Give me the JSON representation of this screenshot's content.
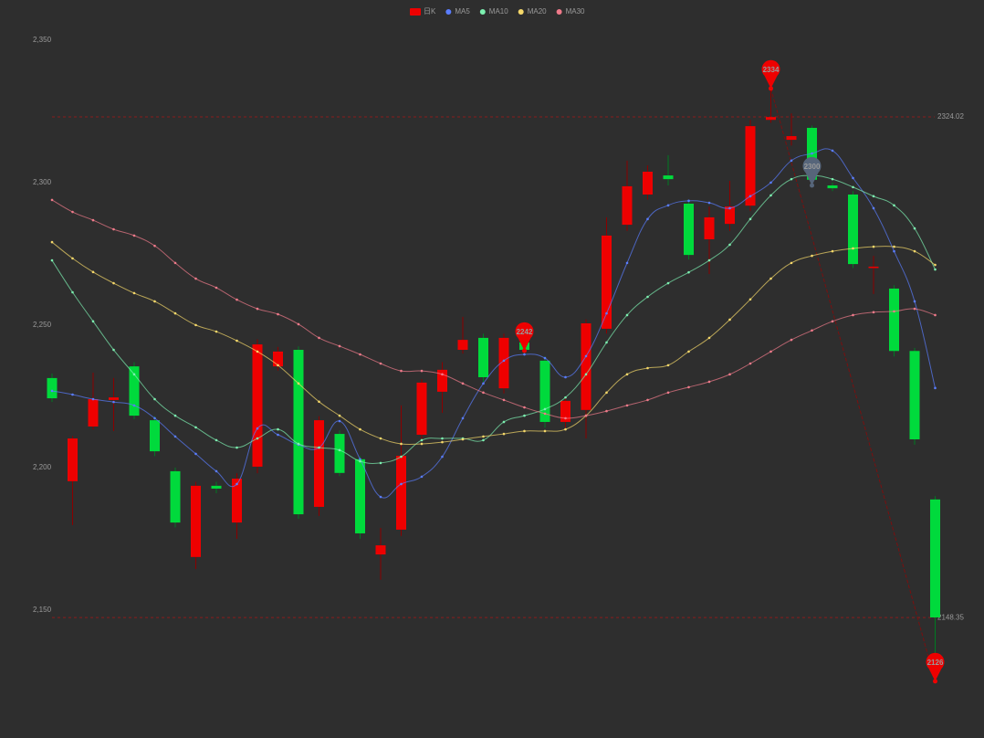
{
  "chart_data": {
    "type": "candlestick",
    "ylim": [
      2120,
      2355
    ],
    "yticks": [
      {
        "value": 2150,
        "label": "2,150"
      },
      {
        "value": 2200,
        "label": "2,200"
      },
      {
        "value": 2250,
        "label": "2,250"
      },
      {
        "value": 2300,
        "label": "2,300"
      },
      {
        "value": 2350,
        "label": "2,350"
      }
    ],
    "series": [
      {
        "name": "日K",
        "color": "#ee0000",
        "color_down": "#00da3c",
        "open": [
          2232.4,
          2196.2,
          2215.4,
          2224.7,
          2236.5,
          2217.6,
          2199.7,
          2169.6,
          2194.6,
          2181.7,
          2201.3,
          2236.5,
          2242.3,
          2187.2,
          2212.8,
          2203.9,
          2170.5,
          2179.2,
          2212.5,
          2227.6,
          2242.3,
          2246.5,
          2228.8,
          2244.9,
          2238.5,
          2217.0,
          2221.2,
          2249.7,
          2286.2,
          2296.8,
          2303.5,
          2293.6,
          2281.1,
          2286.5,
          2292.9,
          2323.0,
          2316.0,
          2320.2,
          2300.0,
          2296.8,
          2271.0,
          2263.8,
          2241.9,
          2189.8
        ],
        "close": [
          2225.3,
          2211.2,
          2225.0,
          2225.6,
          2219.2,
          2206.7,
          2181.7,
          2194.6,
          2193.6,
          2197.1,
          2244.2,
          2241.7,
          2184.6,
          2217.6,
          2199.1,
          2177.9,
          2173.7,
          2205.1,
          2230.8,
          2235.3,
          2245.8,
          2232.7,
          2246.5,
          2242.3,
          2217.0,
          2224.4,
          2251.6,
          2282.4,
          2299.7,
          2304.8,
          2302.2,
          2275.6,
          2288.8,
          2292.6,
          2320.8,
          2324.0,
          2317.3,
          2302.0,
          2299.0,
          2272.4,
          2271.5,
          2241.9,
          2210.9,
          2148.4
        ],
        "low": [
          2224.0,
          2180.8,
          2214.4,
          2213.8,
          2218.0,
          2205.0,
          2180.0,
          2165.4,
          2192.0,
          2176.0,
          2199.0,
          2235.0,
          2183.0,
          2184.0,
          2198.0,
          2176.0,
          2161.6,
          2177.0,
          2211.0,
          2220.2,
          2241.0,
          2231.0,
          2227.0,
          2241.0,
          2215.0,
          2215.0,
          2211.2,
          2248.0,
          2284.0,
          2295.0,
          2300.0,
          2274.0,
          2268.9,
          2284.0,
          2291.0,
          2322.0,
          2314.0,
          2300.0,
          2298.0,
          2271.0,
          2261.9,
          2240.0,
          2209.0,
          2126.0
        ],
        "high": [
          2234.0,
          2212.0,
          2234.3,
          2232.4,
          2238.0,
          2219.0,
          2201.0,
          2196.0,
          2196.0,
          2199.0,
          2246.0,
          2243.3,
          2243.5,
          2219.0,
          2214.0,
          2205.0,
          2179.8,
          2222.8,
          2232.0,
          2238.0,
          2253.9,
          2248.0,
          2248.0,
          2246.0,
          2240.0,
          2226.0,
          2253.0,
          2288.8,
          2308.7,
          2307.0,
          2310.6,
          2295.0,
          2292.6,
          2301.6,
          2323.0,
          2334.0,
          2325.3,
          2321.0,
          2301.0,
          2298.0,
          2275.3,
          2265.0,
          2243.0,
          2191.0
        ]
      },
      {
        "name": "MA5",
        "color": "#5a7dff",
        "values": [
          2227.9,
          2226.6,
          2225.0,
          2224.0,
          2222.8,
          2218.3,
          2211.9,
          2205.8,
          2199.7,
          2195.2,
          2214.7,
          2212.5,
          2209.0,
          2208.0,
          2217.3,
          2203.9,
          2190.7,
          2195.2,
          2197.8,
          2204.8,
          2218.3,
          2230.5,
          2238.5,
          2240.7,
          2239.4,
          2232.7,
          2240.1,
          2255.1,
          2272.8,
          2288.2,
          2293.0,
          2294.6,
          2293.9,
          2292.0,
          2296.2,
          2301.0,
          2308.7,
          2311.2,
          2312.2,
          2302.6,
          2292.0,
          2276.9,
          2259.3,
          2228.9
        ]
      },
      {
        "name": "MA10",
        "color": "#7cf0b0",
        "values": [
          2273.7,
          2262.5,
          2252.3,
          2242.3,
          2233.7,
          2225.0,
          2219.2,
          2215.1,
          2210.6,
          2208.0,
          2211.2,
          2214.4,
          2209.3,
          2208.0,
          2207.1,
          2203.2,
          2202.6,
          2204.8,
          2210.6,
          2211.2,
          2211.2,
          2210.6,
          2217.0,
          2219.2,
          2221.5,
          2225.6,
          2233.7,
          2244.9,
          2254.5,
          2260.9,
          2265.7,
          2269.5,
          2273.7,
          2279.2,
          2288.2,
          2296.5,
          2302.2,
          2303.5,
          2302.2,
          2299.4,
          2296.2,
          2293.0,
          2284.9,
          2270.5
        ]
      },
      {
        "name": "MA20",
        "color": "#f5d86a",
        "values": [
          2280.1,
          2274.4,
          2269.6,
          2265.7,
          2262.2,
          2259.3,
          2255.1,
          2251.0,
          2248.7,
          2245.5,
          2241.7,
          2236.9,
          2230.5,
          2224.1,
          2219.2,
          2214.4,
          2211.2,
          2209.3,
          2209.3,
          2209.9,
          2210.9,
          2211.9,
          2212.8,
          2213.8,
          2213.8,
          2214.4,
          2219.2,
          2227.3,
          2233.7,
          2235.9,
          2236.9,
          2241.7,
          2246.5,
          2252.9,
          2260.0,
          2267.3,
          2272.8,
          2275.3,
          2276.9,
          2277.9,
          2278.5,
          2278.5,
          2276.9,
          2272.1
        ]
      },
      {
        "name": "MA30",
        "color": "#f07a8a",
        "values": [
          2294.9,
          2290.7,
          2287.8,
          2284.6,
          2282.4,
          2278.8,
          2272.8,
          2267.3,
          2264.1,
          2259.9,
          2256.7,
          2254.8,
          2251.3,
          2246.5,
          2243.6,
          2240.7,
          2237.5,
          2234.9,
          2234.9,
          2233.7,
          2230.5,
          2227.3,
          2224.7,
          2222.1,
          2219.9,
          2218.3,
          2219.2,
          2220.8,
          2222.8,
          2224.7,
          2227.3,
          2229.2,
          2231.1,
          2233.7,
          2237.5,
          2241.7,
          2245.8,
          2249.1,
          2252.3,
          2254.5,
          2255.5,
          2255.8,
          2256.7,
          2254.5
        ]
      }
    ],
    "mark_points": [
      {
        "value": 2334,
        "x": 35,
        "color": "#ee0000"
      },
      {
        "value": 2126,
        "x": 43,
        "color": "#ee0000"
      },
      {
        "value": 2242,
        "x": 23,
        "color": "#ee0000"
      },
      {
        "value": 2300,
        "x": 37,
        "color": "#56657a"
      }
    ],
    "mark_lines": [
      2324.02,
      2148.35
    ],
    "mark_line_color": "#8b1c1c"
  }
}
